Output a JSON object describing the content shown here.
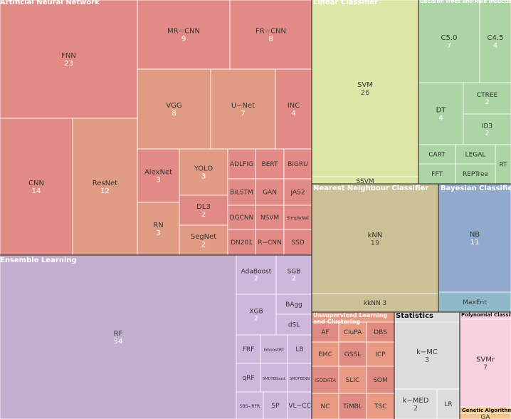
{
  "chart_data": {
    "type": "treemap",
    "title": "",
    "colors": {
      "ann": "#e28a85",
      "ann_alt": "#e39c84",
      "ens": "#c4aed0",
      "ens_light": "#cdb8dc",
      "lin": "#dde5a7",
      "dt": "#acd4a4",
      "nnc": "#ccc196",
      "bay": "#91a9cd",
      "bay_light": "#8fb9c9",
      "uns": "#e89a82",
      "uns_alt": "#e08c83",
      "stat": "#dcdcdc",
      "poly": "#f8d1e1",
      "gen": "#f4c68d",
      "header_text": "#ffffff",
      "label_text": "#333333",
      "value_text": "#ffffff"
    },
    "groups": [
      {
        "name": "Artificial Neural Network",
        "items": [
          {
            "label": "FNN",
            "value": 23
          },
          {
            "label": "CNN",
            "value": 14
          },
          {
            "label": "ResNet",
            "value": 12
          },
          {
            "label": "MR−CNN",
            "value": 9
          },
          {
            "label": "FR−CNN",
            "value": 8
          },
          {
            "label": "VGG",
            "value": 8
          },
          {
            "label": "U−Net",
            "value": 7
          },
          {
            "label": "INC",
            "value": 4
          },
          {
            "label": "AlexNet",
            "value": 3
          },
          {
            "label": "YOLO",
            "value": 3
          },
          {
            "label": "RN",
            "value": 3
          },
          {
            "label": "DL3",
            "value": 2
          },
          {
            "label": "SegNet",
            "value": 2
          },
          {
            "label": "ADLFIG",
            "value": 1
          },
          {
            "label": "BERT",
            "value": 1
          },
          {
            "label": "BiGRU",
            "value": 1
          },
          {
            "label": "BiLSTM",
            "value": 1
          },
          {
            "label": "GAN",
            "value": 1
          },
          {
            "label": "JAS2",
            "value": 1
          },
          {
            "label": "DGCNN",
            "value": 1
          },
          {
            "label": "NSVM",
            "value": 1
          },
          {
            "label": "SimpleNet",
            "value": 1
          },
          {
            "label": "DN201",
            "value": 1
          },
          {
            "label": "R−CNN",
            "value": 1
          },
          {
            "label": "SSD",
            "value": 1
          }
        ]
      },
      {
        "name": "Ensemble Learning",
        "items": [
          {
            "label": "RF",
            "value": 54
          },
          {
            "label": "AdaBoost",
            "value": 2
          },
          {
            "label": "SGB",
            "value": 2
          },
          {
            "label": "XGB",
            "value": 2
          },
          {
            "label": "BAgg",
            "value": 1
          },
          {
            "label": "dSL",
            "value": 1
          },
          {
            "label": "FRF",
            "value": 1
          },
          {
            "label": "GboostRT",
            "value": 1
          },
          {
            "label": "LB",
            "value": 1
          },
          {
            "label": "qRF",
            "value": 1
          },
          {
            "label": "SMOTEBoost",
            "value": 1
          },
          {
            "label": "SMOTEENN",
            "value": 1
          },
          {
            "label": "SBS−RFR",
            "value": 1
          },
          {
            "label": "SP",
            "value": 1
          },
          {
            "label": "VL−CC",
            "value": 1
          }
        ]
      },
      {
        "name": "Linear Classifier",
        "items": [
          {
            "label": "SVM",
            "value": 26
          },
          {
            "label": "SSVM",
            "value": 1
          }
        ]
      },
      {
        "name": "Decision Trees and Rule Induction",
        "items": [
          {
            "label": "C5.0",
            "value": 7
          },
          {
            "label": "C4.5",
            "value": 4
          },
          {
            "label": "DT",
            "value": 4
          },
          {
            "label": "CTREE",
            "value": 2
          },
          {
            "label": "ID3",
            "value": 2
          },
          {
            "label": "CART",
            "value": 1
          },
          {
            "label": "LEGAL",
            "value": 1
          },
          {
            "label": "RT",
            "value": 1
          },
          {
            "label": "FFT",
            "value": 1
          },
          {
            "label": "REPTree",
            "value": 1
          }
        ]
      },
      {
        "name": "Nearest Neighbour Classifier",
        "items": [
          {
            "label": "kNN",
            "value": 19
          },
          {
            "label": "kkNN",
            "value": 3
          }
        ]
      },
      {
        "name": "Bayesian Classifier",
        "items": [
          {
            "label": "NB",
            "value": 11
          },
          {
            "label": "MaxEnt",
            "value": 1
          }
        ]
      },
      {
        "name": "Unsupervised Learning and Clustering",
        "items": [
          {
            "label": "AF",
            "value": 1
          },
          {
            "label": "CluPA",
            "value": 1
          },
          {
            "label": "DBS",
            "value": 1
          },
          {
            "label": "EMC",
            "value": 1
          },
          {
            "label": "GSSL",
            "value": 1
          },
          {
            "label": "ICP",
            "value": 1
          },
          {
            "label": "ISODATA",
            "value": 1
          },
          {
            "label": "SLIC",
            "value": 1
          },
          {
            "label": "SOM",
            "value": 1
          },
          {
            "label": "NC",
            "value": 1
          },
          {
            "label": "TiMBL",
            "value": 1
          },
          {
            "label": "TSC",
            "value": 1
          }
        ]
      },
      {
        "name": "Statistics",
        "items": [
          {
            "label": "k−MC",
            "value": 3
          },
          {
            "label": "k−MED",
            "value": 2
          },
          {
            "label": "LR",
            "value": 1
          }
        ]
      },
      {
        "name": "Polynomial Classifier",
        "items": [
          {
            "label": "SVMr",
            "value": 7
          }
        ]
      },
      {
        "name": "Genetic Algorithm",
        "items": [
          {
            "label": "GA",
            "value": 1
          }
        ]
      }
    ]
  }
}
